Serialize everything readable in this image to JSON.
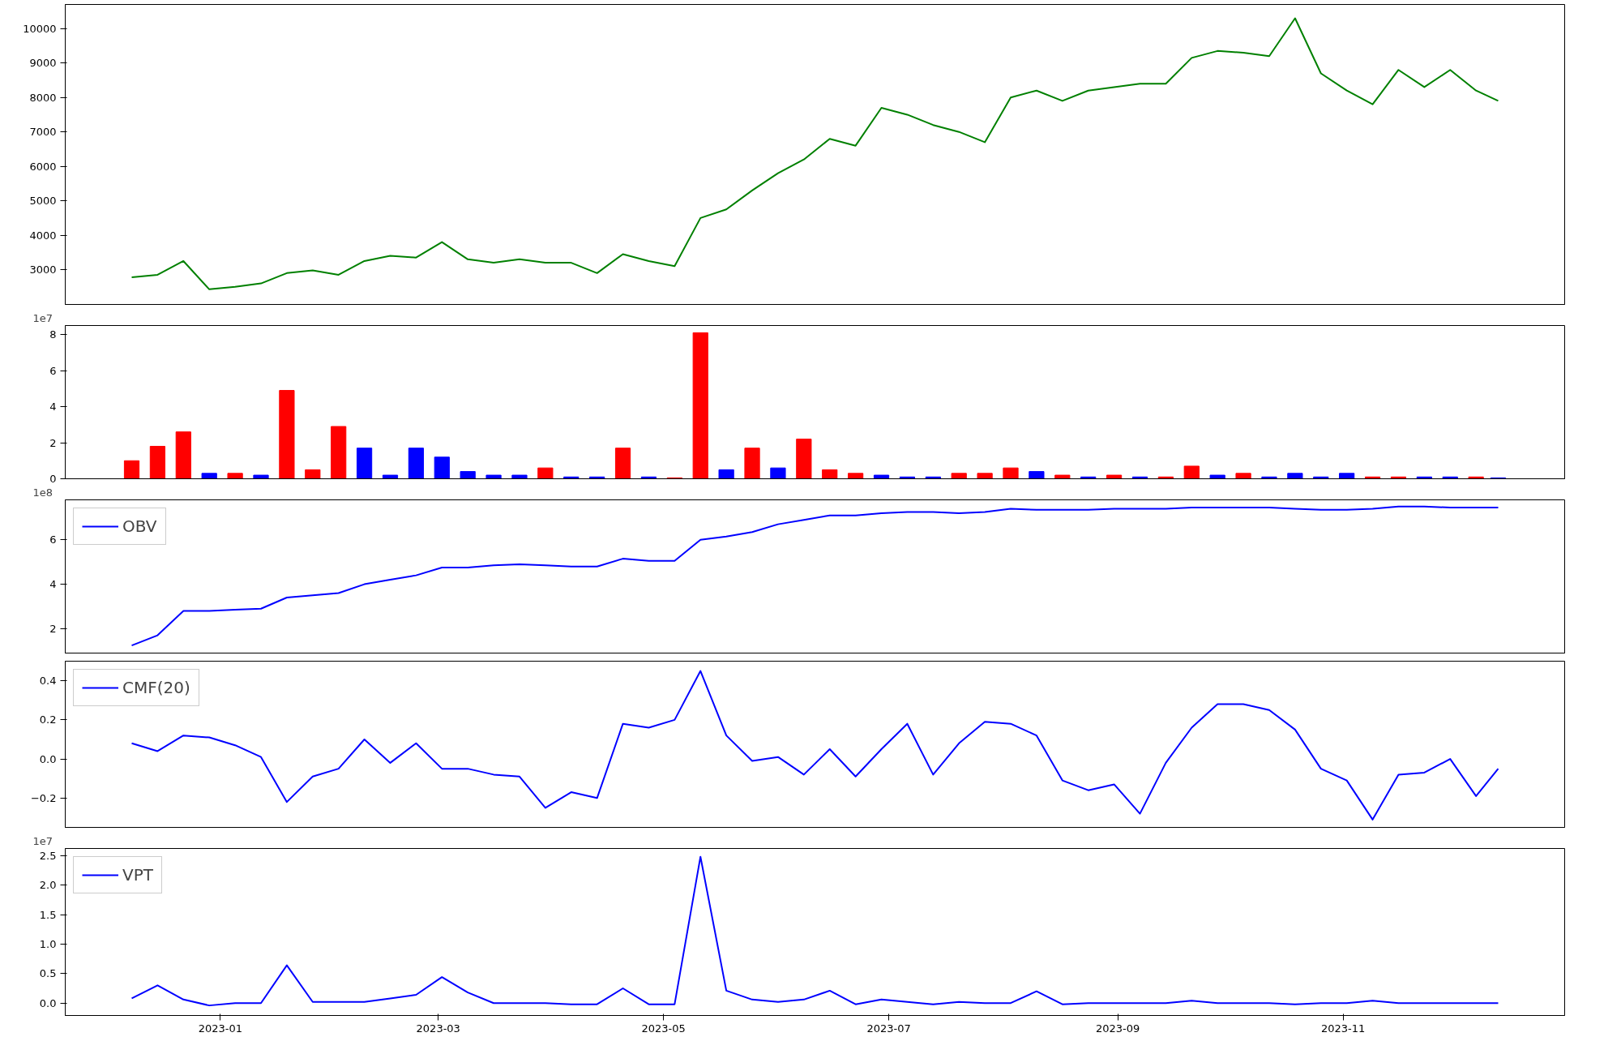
{
  "chart_data": [
    {
      "type": "line",
      "x": [
        "2022-12-08",
        "2022-12-15",
        "2022-12-22",
        "2022-12-29",
        "2023-01-05",
        "2023-01-12",
        "2023-01-19",
        "2023-01-26",
        "2023-02-02",
        "2023-02-09",
        "2023-02-16",
        "2023-02-23",
        "2023-03-02",
        "2023-03-09",
        "2023-03-16",
        "2023-03-23",
        "2023-03-30",
        "2023-04-06",
        "2023-04-13",
        "2023-04-20",
        "2023-04-27",
        "2023-05-04",
        "2023-05-11",
        "2023-05-18",
        "2023-05-25",
        "2023-06-01",
        "2023-06-08",
        "2023-06-15",
        "2023-06-22",
        "2023-06-29",
        "2023-07-06",
        "2023-07-13",
        "2023-07-20",
        "2023-07-27",
        "2023-08-03",
        "2023-08-10",
        "2023-08-17",
        "2023-08-24",
        "2023-08-31",
        "2023-09-07",
        "2023-09-14",
        "2023-09-21",
        "2023-09-28",
        "2023-10-05",
        "2023-10-12",
        "2023-10-19",
        "2023-10-26",
        "2023-11-02",
        "2023-11-09",
        "2023-11-16",
        "2023-11-23",
        "2023-11-30",
        "2023-12-07",
        "2023-12-13"
      ],
      "series": [
        {
          "color": "#008000",
          "values": [
            2780,
            2850,
            3250,
            2430,
            2500,
            2600,
            2900,
            2980,
            2850,
            3250,
            3400,
            3350,
            3800,
            3300,
            3200,
            3300,
            3200,
            3200,
            2900,
            3450,
            3250,
            3100,
            4500,
            4750,
            5300,
            5800,
            6200,
            6800,
            6600,
            7700,
            7500,
            7200,
            7000,
            6700,
            8000,
            8200,
            7900,
            8200,
            8300,
            8400,
            8400,
            9150,
            9350,
            9300,
            9200,
            10300,
            8700,
            8200,
            7800,
            8800,
            8300,
            8800,
            8200,
            7900
          ]
        }
      ],
      "xlim": [
        "2022-11-20",
        "2023-12-31"
      ],
      "ylim": [
        1990,
        10700
      ],
      "yticks": [
        3000,
        4000,
        5000,
        6000,
        7000,
        8000,
        9000,
        10000
      ],
      "tick_labels": "y",
      "grid": false,
      "legend": false
    },
    {
      "type": "bar",
      "x": [
        "2022-12-08",
        "2022-12-15",
        "2022-12-22",
        "2022-12-29",
        "2023-01-05",
        "2023-01-12",
        "2023-01-19",
        "2023-01-26",
        "2023-02-02",
        "2023-02-09",
        "2023-02-16",
        "2023-02-23",
        "2023-03-02",
        "2023-03-09",
        "2023-03-16",
        "2023-03-23",
        "2023-03-30",
        "2023-04-06",
        "2023-04-13",
        "2023-04-20",
        "2023-04-27",
        "2023-05-04",
        "2023-05-11",
        "2023-05-18",
        "2023-05-25",
        "2023-06-01",
        "2023-06-08",
        "2023-06-15",
        "2023-06-22",
        "2023-06-29",
        "2023-07-06",
        "2023-07-13",
        "2023-07-20",
        "2023-07-27",
        "2023-08-03",
        "2023-08-10",
        "2023-08-17",
        "2023-08-24",
        "2023-08-31",
        "2023-09-07",
        "2023-09-14",
        "2023-09-21",
        "2023-09-28",
        "2023-10-05",
        "2023-10-12",
        "2023-10-19",
        "2023-10-26",
        "2023-11-02",
        "2023-11-09",
        "2023-11-16",
        "2023-11-23",
        "2023-11-30",
        "2023-12-07",
        "2023-12-13"
      ],
      "values": [
        1.0,
        1.8,
        2.6,
        0.3,
        0.3,
        0.2,
        4.9,
        0.5,
        2.9,
        1.7,
        0.2,
        1.7,
        1.2,
        0.4,
        0.2,
        0.2,
        0.6,
        0.1,
        0.1,
        1.7,
        0.1,
        0.05,
        8.1,
        0.5,
        1.7,
        0.6,
        2.2,
        0.5,
        0.3,
        0.2,
        0.1,
        0.1,
        0.3,
        0.3,
        0.6,
        0.4,
        0.2,
        0.1,
        0.2,
        0.1,
        0.1,
        0.7,
        0.2,
        0.3,
        0.1,
        0.3,
        0.1,
        0.3,
        0.1,
        0.1,
        0.1,
        0.1,
        0.1,
        0.05
      ],
      "colors": [
        "#ff0000",
        "#ff0000",
        "#ff0000",
        "#0000ff",
        "#ff0000",
        "#0000ff",
        "#ff0000",
        "#ff0000",
        "#ff0000",
        "#0000ff",
        "#0000ff",
        "#0000ff",
        "#0000ff",
        "#0000ff",
        "#0000ff",
        "#0000ff",
        "#ff0000",
        "#0000ff",
        "#0000ff",
        "#ff0000",
        "#0000ff",
        "#ff0000",
        "#ff0000",
        "#0000ff",
        "#ff0000",
        "#0000ff",
        "#ff0000",
        "#ff0000",
        "#ff0000",
        "#0000ff",
        "#0000ff",
        "#0000ff",
        "#ff0000",
        "#ff0000",
        "#ff0000",
        "#0000ff",
        "#ff0000",
        "#0000ff",
        "#ff0000",
        "#0000ff",
        "#ff0000",
        "#ff0000",
        "#0000ff",
        "#ff0000",
        "#0000ff",
        "#0000ff",
        "#0000ff",
        "#0000ff",
        "#ff0000",
        "#ff0000",
        "#0000ff",
        "#0000ff",
        "#ff0000",
        "#0000ff"
      ],
      "xlim": [
        "2022-11-20",
        "2023-12-31"
      ],
      "ylim": [
        0,
        8.5
      ],
      "yticks": [
        0,
        2,
        4,
        6,
        8
      ],
      "annotations": [
        "1e7"
      ],
      "tick_labels": "y",
      "grid": false,
      "legend": false
    },
    {
      "type": "line",
      "x": [
        "2022-12-08",
        "2022-12-15",
        "2022-12-22",
        "2022-12-29",
        "2023-01-05",
        "2023-01-12",
        "2023-01-19",
        "2023-01-26",
        "2023-02-02",
        "2023-02-09",
        "2023-02-16",
        "2023-02-23",
        "2023-03-02",
        "2023-03-09",
        "2023-03-16",
        "2023-03-23",
        "2023-03-30",
        "2023-04-06",
        "2023-04-13",
        "2023-04-20",
        "2023-04-27",
        "2023-05-04",
        "2023-05-11",
        "2023-05-18",
        "2023-05-25",
        "2023-06-01",
        "2023-06-08",
        "2023-06-15",
        "2023-06-22",
        "2023-06-29",
        "2023-07-06",
        "2023-07-13",
        "2023-07-20",
        "2023-07-27",
        "2023-08-03",
        "2023-08-10",
        "2023-08-17",
        "2023-08-24",
        "2023-08-31",
        "2023-09-07",
        "2023-09-14",
        "2023-09-21",
        "2023-09-28",
        "2023-10-05",
        "2023-10-12",
        "2023-10-19",
        "2023-10-26",
        "2023-11-02",
        "2023-11-09",
        "2023-11-16",
        "2023-11-23",
        "2023-11-30",
        "2023-12-07",
        "2023-12-13"
      ],
      "series": [
        {
          "name": "OBV",
          "color": "#0000ff",
          "values": [
            1.24,
            1.7,
            2.8,
            2.8,
            2.85,
            2.9,
            3.4,
            3.5,
            3.6,
            4.0,
            4.2,
            4.4,
            4.75,
            4.75,
            4.85,
            4.9,
            4.85,
            4.8,
            4.8,
            5.15,
            5.05,
            5.05,
            6.0,
            6.15,
            6.35,
            6.7,
            6.9,
            7.1,
            7.1,
            7.2,
            7.25,
            7.25,
            7.2,
            7.25,
            7.4,
            7.35,
            7.35,
            7.35,
            7.4,
            7.4,
            7.4,
            7.45,
            7.45,
            7.45,
            7.45,
            7.4,
            7.35,
            7.35,
            7.4,
            7.5,
            7.5,
            7.45,
            7.45,
            7.45
          ]
        }
      ],
      "xlim": [
        "2022-11-20",
        "2023-12-31"
      ],
      "ylim": [
        0.9,
        7.8
      ],
      "yticks": [
        2,
        4,
        6
      ],
      "annotations": [
        "1e8"
      ],
      "tick_labels": "y",
      "grid": false,
      "legend": "top left"
    },
    {
      "type": "line",
      "x": [
        "2022-12-08",
        "2022-12-15",
        "2022-12-22",
        "2022-12-29",
        "2023-01-05",
        "2023-01-12",
        "2023-01-19",
        "2023-01-26",
        "2023-02-02",
        "2023-02-09",
        "2023-02-16",
        "2023-02-23",
        "2023-03-02",
        "2023-03-09",
        "2023-03-16",
        "2023-03-23",
        "2023-03-30",
        "2023-04-06",
        "2023-04-13",
        "2023-04-20",
        "2023-04-27",
        "2023-05-04",
        "2023-05-11",
        "2023-05-18",
        "2023-05-25",
        "2023-06-01",
        "2023-06-08",
        "2023-06-15",
        "2023-06-22",
        "2023-06-29",
        "2023-07-06",
        "2023-07-13",
        "2023-07-20",
        "2023-07-27",
        "2023-08-03",
        "2023-08-10",
        "2023-08-17",
        "2023-08-24",
        "2023-08-31",
        "2023-09-07",
        "2023-09-14",
        "2023-09-21",
        "2023-09-28",
        "2023-10-05",
        "2023-10-12",
        "2023-10-19",
        "2023-10-26",
        "2023-11-02",
        "2023-11-09",
        "2023-11-16",
        "2023-11-23",
        "2023-11-30",
        "2023-12-07",
        "2023-12-13"
      ],
      "series": [
        {
          "name": "CMF(20)",
          "color": "#0000ff",
          "values": [
            0.08,
            0.04,
            0.12,
            0.11,
            0.07,
            0.01,
            -0.22,
            -0.09,
            -0.05,
            0.1,
            -0.02,
            0.08,
            -0.05,
            -0.05,
            -0.08,
            -0.09,
            -0.25,
            -0.17,
            -0.2,
            0.18,
            0.16,
            0.2,
            0.45,
            0.12,
            -0.01,
            0.01,
            -0.08,
            0.05,
            -0.09,
            0.05,
            0.18,
            -0.08,
            0.08,
            0.19,
            0.18,
            0.12,
            -0.11,
            -0.16,
            -0.13,
            -0.28,
            -0.02,
            0.16,
            0.28,
            0.28,
            0.25,
            0.15,
            -0.05,
            -0.11,
            -0.31,
            -0.08,
            -0.07,
            0.0,
            -0.19,
            -0.05
          ]
        }
      ],
      "xlim": [
        "2022-11-20",
        "2023-12-31"
      ],
      "ylim": [
        -0.35,
        0.5
      ],
      "yticks": [
        {
          "value": -0.2,
          "label": "−0.2"
        },
        {
          "value": 0,
          "label": "0.0"
        },
        {
          "value": 0.2,
          "label": "0.2"
        },
        {
          "value": 0.4,
          "label": "0.4"
        }
      ],
      "tick_labels": "y",
      "grid": false,
      "legend": "top left"
    },
    {
      "type": "line",
      "x": [
        "2022-12-08",
        "2022-12-15",
        "2022-12-22",
        "2022-12-29",
        "2023-01-05",
        "2023-01-12",
        "2023-01-19",
        "2023-01-26",
        "2023-02-02",
        "2023-02-09",
        "2023-02-16",
        "2023-02-23",
        "2023-03-02",
        "2023-03-09",
        "2023-03-16",
        "2023-03-23",
        "2023-03-30",
        "2023-04-06",
        "2023-04-13",
        "2023-04-20",
        "2023-04-27",
        "2023-05-04",
        "2023-05-11",
        "2023-05-18",
        "2023-05-25",
        "2023-06-01",
        "2023-06-08",
        "2023-06-15",
        "2023-06-22",
        "2023-06-29",
        "2023-07-06",
        "2023-07-13",
        "2023-07-20",
        "2023-07-27",
        "2023-08-03",
        "2023-08-10",
        "2023-08-17",
        "2023-08-24",
        "2023-08-31",
        "2023-09-07",
        "2023-09-14",
        "2023-09-21",
        "2023-09-28",
        "2023-10-05",
        "2023-10-12",
        "2023-10-19",
        "2023-10-26",
        "2023-11-02",
        "2023-11-09",
        "2023-11-16",
        "2023-11-23",
        "2023-11-30",
        "2023-12-07",
        "2023-12-13"
      ],
      "series": [
        {
          "name": "VPT",
          "color": "#0000ff",
          "values": [
            0.08,
            0.3,
            0.06,
            -0.04,
            0.0,
            0.0,
            0.64,
            0.02,
            0.02,
            0.02,
            0.08,
            0.14,
            0.44,
            0.18,
            0.0,
            0.0,
            0.0,
            -0.02,
            -0.02,
            0.25,
            -0.02,
            -0.02,
            2.48,
            0.21,
            0.06,
            0.02,
            0.06,
            0.21,
            -0.02,
            0.06,
            0.02,
            -0.02,
            0.02,
            0.0,
            0.0,
            0.2,
            -0.02,
            0.0,
            0.0,
            0.0,
            0.0,
            0.04,
            0.0,
            0.0,
            0.0,
            -0.02,
            0.0,
            0.0,
            0.04,
            0.0,
            0.0,
            0.0,
            0.0,
            0.0
          ]
        }
      ],
      "xlim": [
        "2022-11-20",
        "2023-12-31"
      ],
      "ylim": [
        -0.21,
        2.62
      ],
      "yticks": [
        {
          "value": 0,
          "label": "0.0"
        },
        {
          "value": 0.5,
          "label": "0.5"
        },
        {
          "value": 1,
          "label": "1.0"
        },
        {
          "value": 1.5,
          "label": "1.5"
        },
        {
          "value": 2,
          "label": "2.0"
        },
        {
          "value": 2.5,
          "label": "2.5"
        }
      ],
      "xticks": [
        {
          "value": "2023-01-01",
          "label": "2023-01"
        },
        {
          "value": "2023-03-01",
          "label": "2023-03"
        },
        {
          "value": "2023-05-01",
          "label": "2023-05"
        },
        {
          "value": "2023-07-01",
          "label": "2023-07"
        },
        {
          "value": "2023-09-01",
          "label": "2023-09"
        },
        {
          "value": "2023-11-01",
          "label": "2023-11"
        }
      ],
      "annotations": [
        "1e7"
      ],
      "grid": false,
      "legend": "top left"
    }
  ]
}
